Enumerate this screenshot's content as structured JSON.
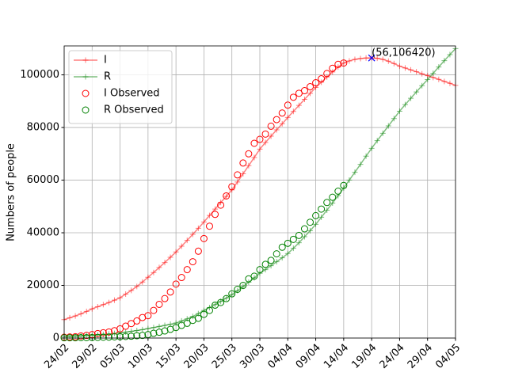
{
  "chart_data": {
    "type": "line",
    "y_label": "Numbers of people",
    "xlim": [
      1,
      71
    ],
    "ylim": [
      0,
      111000
    ],
    "xticks": [
      {
        "value": 1,
        "label": "24/02"
      },
      {
        "value": 6,
        "label": "29/02"
      },
      {
        "value": 11,
        "label": "05/03"
      },
      {
        "value": 16,
        "label": "10/03"
      },
      {
        "value": 21,
        "label": "15/03"
      },
      {
        "value": 26,
        "label": "20/03"
      },
      {
        "value": 31,
        "label": "25/03"
      },
      {
        "value": 36,
        "label": "30/03"
      },
      {
        "value": 41,
        "label": "04/04"
      },
      {
        "value": 46,
        "label": "09/04"
      },
      {
        "value": 51,
        "label": "14/04"
      },
      {
        "value": 56,
        "label": "19/04"
      },
      {
        "value": 61,
        "label": "24/04"
      },
      {
        "value": 66,
        "label": "29/04"
      },
      {
        "value": 71,
        "label": "04/05"
      }
    ],
    "yticks": [
      0,
      20000,
      40000,
      60000,
      80000,
      100000
    ],
    "grid": true,
    "legend": "upper left",
    "series": [
      {
        "name": "I",
        "color": "#ff0000",
        "marker": "+",
        "line": true,
        "x": [
          1,
          2,
          3,
          4,
          5,
          6,
          7,
          8,
          9,
          10,
          11,
          12,
          13,
          14,
          15,
          16,
          17,
          18,
          19,
          20,
          21,
          22,
          23,
          24,
          25,
          26,
          27,
          28,
          29,
          30,
          31,
          32,
          33,
          34,
          35,
          36,
          37,
          38,
          39,
          40,
          41,
          42,
          43,
          44,
          45,
          46,
          47,
          48,
          49,
          50,
          51,
          52,
          53,
          54,
          55,
          56,
          57,
          58,
          59,
          60,
          61,
          62,
          63,
          64,
          65,
          66,
          67,
          68,
          69,
          70,
          71
        ],
        "values": [
          7000,
          7700,
          8400,
          9200,
          10100,
          11100,
          11900,
          12700,
          13500,
          14400,
          15300,
          16700,
          18100,
          19600,
          21300,
          23100,
          24900,
          26800,
          28700,
          30700,
          32700,
          34900,
          37100,
          39400,
          41700,
          44100,
          46600,
          49000,
          51500,
          53800,
          56300,
          59300,
          62400,
          65500,
          68600,
          71800,
          74300,
          76700,
          79100,
          81400,
          83800,
          86100,
          88400,
          90700,
          93000,
          95200,
          97200,
          99200,
          101100,
          103000,
          104500,
          105300,
          105900,
          106200,
          106400,
          106420,
          106300,
          105900,
          105200,
          104300,
          103300,
          102600,
          101900,
          101200,
          100400,
          99700,
          99000,
          98300,
          97500,
          96800,
          96000
        ]
      },
      {
        "name": "R",
        "color": "#008000",
        "marker": "+",
        "line": true,
        "x": [
          1,
          2,
          3,
          4,
          5,
          6,
          7,
          8,
          9,
          10,
          11,
          12,
          13,
          14,
          15,
          16,
          17,
          18,
          19,
          20,
          21,
          22,
          23,
          24,
          25,
          26,
          27,
          28,
          29,
          30,
          31,
          32,
          33,
          34,
          35,
          36,
          37,
          38,
          39,
          40,
          41,
          42,
          43,
          44,
          45,
          46,
          47,
          48,
          49,
          50,
          51,
          52,
          53,
          54,
          55,
          56,
          57,
          58,
          59,
          60,
          61,
          62,
          63,
          64,
          65,
          66,
          67,
          68,
          69,
          70,
          71
        ],
        "values": [
          500,
          600,
          700,
          800,
          950,
          1100,
          1250,
          1400,
          1550,
          1750,
          2000,
          2250,
          2550,
          2850,
          3200,
          3600,
          4000,
          4400,
          4800,
          5250,
          5700,
          6500,
          7300,
          8200,
          9300,
          10500,
          11600,
          12700,
          13900,
          15200,
          16500,
          18000,
          19600,
          21200,
          22900,
          24600,
          26000,
          27500,
          29000,
          30500,
          32100,
          34100,
          36200,
          38500,
          40800,
          43200,
          45900,
          48600,
          51300,
          54100,
          57000,
          60000,
          63000,
          66000,
          69100,
          72100,
          75000,
          77800,
          80600,
          83400,
          86200,
          88700,
          91100,
          93500,
          95900,
          98200,
          100600,
          103000,
          105400,
          107700,
          110000
        ]
      },
      {
        "name": "I Observed",
        "color": "#ff0000",
        "marker": "o",
        "line": false,
        "x": [
          1,
          2,
          3,
          4,
          5,
          6,
          7,
          8,
          9,
          10,
          11,
          12,
          13,
          14,
          15,
          16,
          17,
          18,
          19,
          20,
          21,
          22,
          23,
          24,
          25,
          26,
          27,
          28,
          29,
          30,
          31,
          32,
          33,
          34,
          35,
          36,
          37,
          38,
          39,
          40,
          41,
          42,
          43,
          44,
          45,
          46,
          47,
          48,
          49,
          50,
          51
        ],
        "values": [
          300,
          400,
          500,
          800,
          1000,
          1300,
          1700,
          2000,
          2300,
          2800,
          3500,
          4500,
          5500,
          6500,
          7800,
          8500,
          10500,
          12800,
          15000,
          17500,
          20500,
          23000,
          26000,
          29000,
          33000,
          37800,
          42500,
          47000,
          50500,
          54000,
          57500,
          62000,
          66500,
          70000,
          74000,
          75500,
          77500,
          80500,
          83000,
          85500,
          88500,
          91500,
          93000,
          94000,
          95500,
          97000,
          98500,
          100500,
          102500,
          104000,
          104500
        ]
      },
      {
        "name": "R Observed",
        "color": "#008000",
        "marker": "o",
        "line": false,
        "x": [
          1,
          2,
          3,
          4,
          5,
          6,
          7,
          8,
          9,
          10,
          11,
          12,
          13,
          14,
          15,
          16,
          17,
          18,
          19,
          20,
          21,
          22,
          23,
          24,
          25,
          26,
          27,
          28,
          29,
          30,
          31,
          32,
          33,
          34,
          35,
          36,
          37,
          38,
          39,
          40,
          41,
          42,
          43,
          44,
          45,
          46,
          47,
          48,
          49,
          50,
          51
        ],
        "values": [
          100,
          100,
          100,
          150,
          150,
          200,
          250,
          300,
          350,
          450,
          500,
          600,
          700,
          900,
          1000,
          1300,
          1800,
          2200,
          2700,
          3300,
          4000,
          4800,
          5600,
          6700,
          7500,
          9000,
          10500,
          12500,
          13500,
          15000,
          16800,
          18500,
          20000,
          22500,
          23500,
          26000,
          28000,
          29500,
          32000,
          34500,
          36000,
          37500,
          39000,
          41500,
          44000,
          46500,
          49000,
          51500,
          53500,
          55800,
          58000
        ]
      }
    ],
    "annotations": [
      {
        "text": "(56,106420)",
        "x": 56,
        "y": 106420,
        "color": "#0000ff"
      }
    ]
  }
}
